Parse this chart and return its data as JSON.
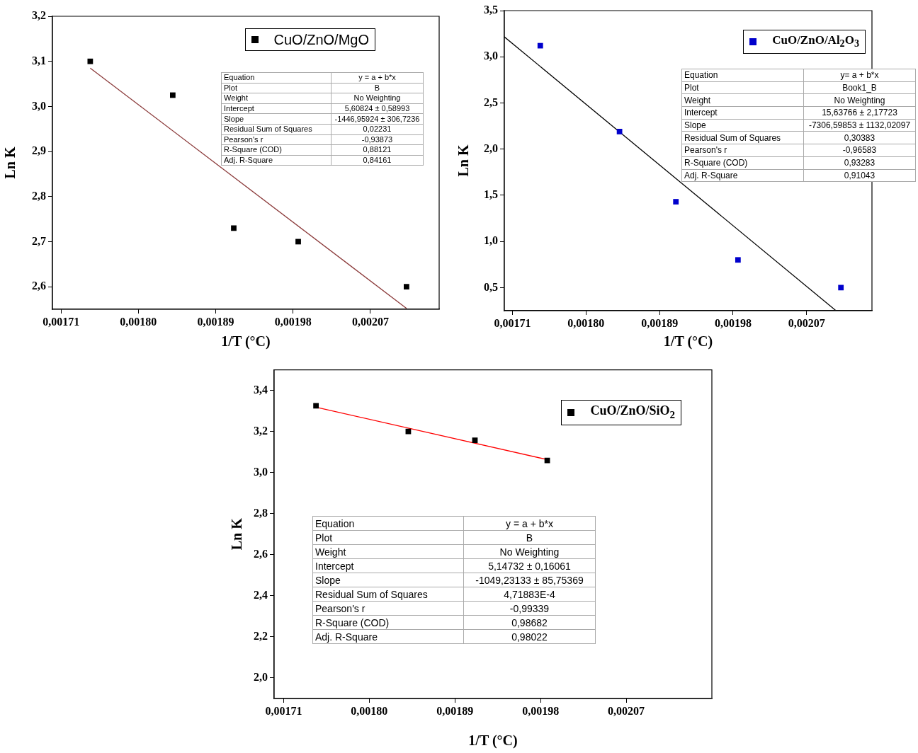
{
  "chart_data": [
    {
      "type": "scatter",
      "xlabel": "1/T (°C)",
      "ylabel": "Ln K",
      "marker": "square",
      "grid": false,
      "legend": "top right",
      "xlim": [
        0.0017,
        0.00215
      ],
      "xticks": [
        {
          "value": 0.00171,
          "label": "0,00171"
        },
        {
          "value": 0.0018,
          "label": "0,00180"
        },
        {
          "value": 0.00189,
          "label": "0,00189"
        },
        {
          "value": 0.00198,
          "label": "0,00198"
        },
        {
          "value": 0.00207,
          "label": "0,00207"
        }
      ],
      "ylim": [
        2.55,
        3.2
      ],
      "yticks": [
        {
          "value": 2.6,
          "label": "2,6"
        },
        {
          "value": 2.7,
          "label": "2,7"
        },
        {
          "value": 2.8,
          "label": "2,8"
        },
        {
          "value": 2.9,
          "label": "2,9"
        },
        {
          "value": 3.0,
          "label": "3,0"
        },
        {
          "value": 3.1,
          "label": "3,1"
        },
        {
          "value": 3.2,
          "label": "3,2"
        }
      ],
      "series": [
        {
          "name": "CuO/ZnO/MgO",
          "color": "#000000",
          "x": [
            0.001744,
            0.00184,
            0.001911,
            0.001986,
            0.002112
          ],
          "values": [
            3.1,
            3.025,
            2.73,
            2.7,
            2.6
          ]
        },
        {
          "type": "line",
          "marker": "none",
          "color": "#8b3a3a",
          "x": [
            0.001744,
            0.002112
          ],
          "values": [
            3.085,
            2.552
          ]
        }
      ],
      "annotations": [
        "Equation",
        "y = a + b*x",
        "Plot",
        "B",
        "Weight",
        "No Weighting",
        "Intercept",
        "5,60824 ± 0,58993",
        "Slope",
        "-1446,95924 ± 306,7236",
        "Residual Sum of Squares",
        "0,02231",
        "Pearson's r",
        "-0,93873",
        "R-Square (COD)",
        "0,88121",
        "Adj. R-Square",
        "0,84161"
      ]
    },
    {
      "type": "scatter",
      "xlabel": "1/T (°C)",
      "ylabel": "Ln K",
      "marker": "square",
      "grid": false,
      "legend": "top right",
      "xlim": [
        0.0017,
        0.00215
      ],
      "xticks": [
        {
          "value": 0.00171,
          "label": "0,00171"
        },
        {
          "value": 0.0018,
          "label": "0,00180"
        },
        {
          "value": 0.00189,
          "label": "0,00189"
        },
        {
          "value": 0.00198,
          "label": "0,00198"
        },
        {
          "value": 0.00207,
          "label": "0,00207"
        }
      ],
      "ylim": [
        0.25,
        3.5
      ],
      "yticks": [
        {
          "value": 0.5,
          "label": "0,5"
        },
        {
          "value": 1.0,
          "label": "1,0"
        },
        {
          "value": 1.5,
          "label": "1,5"
        },
        {
          "value": 2.0,
          "label": "2,0"
        },
        {
          "value": 2.5,
          "label": "2,5"
        },
        {
          "value": 3.0,
          "label": "3,0"
        },
        {
          "value": 3.5,
          "label": "3,5"
        }
      ],
      "series": [
        {
          "name": "CuO/ZnO/Al$_{2}$O$_{3}$",
          "color": "#0000cc",
          "x": [
            0.001744,
            0.001841,
            0.00191,
            0.001986,
            0.002112
          ],
          "values": [
            3.12,
            2.19,
            1.43,
            0.8,
            0.5
          ]
        },
        {
          "type": "line",
          "marker": "none",
          "color": "#000000",
          "x": [
            0.0017,
            0.002106
          ],
          "values": [
            3.216,
            0.25
          ]
        }
      ],
      "annotations": [
        "Equation",
        "y= a + b*x",
        "Plot",
        "Book1_B",
        "Weight",
        "No Weighting",
        "Intercept",
        "15,63766 ± 2,17723",
        "Slope",
        "-7306,59853 ± 1132,02097",
        "Residual Sum of Squares",
        "0,30383",
        "Pearson's r",
        "-0,96583",
        "R-Square (COD)",
        "0,93283",
        "Adj. R-Square",
        "0,91043"
      ]
    },
    {
      "type": "scatter",
      "xlabel": "1/T (°C)",
      "ylabel": "Ln K",
      "marker": "square",
      "grid": false,
      "legend": "top right",
      "xlim": [
        0.0017,
        0.00216
      ],
      "xticks": [
        {
          "value": 0.00171,
          "label": "0,00171"
        },
        {
          "value": 0.0018,
          "label": "0,00180"
        },
        {
          "value": 0.00189,
          "label": "0,00189"
        },
        {
          "value": 0.00198,
          "label": "0,00198"
        },
        {
          "value": 0.00207,
          "label": "0,00207"
        }
      ],
      "ylim": [
        1.9,
        3.5
      ],
      "yticks": [
        {
          "value": 2.0,
          "label": "2,0"
        },
        {
          "value": 2.2,
          "label": "2,2"
        },
        {
          "value": 2.4,
          "label": "2,4"
        },
        {
          "value": 2.6,
          "label": "2,6"
        },
        {
          "value": 2.8,
          "label": "2,8"
        },
        {
          "value": 3.0,
          "label": "3,0"
        },
        {
          "value": 3.2,
          "label": "3,2"
        },
        {
          "value": 3.4,
          "label": "3,4"
        }
      ],
      "series": [
        {
          "name": "CuO/ZnO/SiO$_{2}$",
          "color": "#000000",
          "x": [
            0.001744,
            0.001841,
            0.001911,
            0.001987
          ],
          "values": [
            3.325,
            3.2,
            3.157,
            3.059
          ]
        },
        {
          "type": "line",
          "marker": "none",
          "color": "#ff0000",
          "x": [
            0.001744,
            0.001987
          ],
          "values": [
            3.318,
            3.063
          ]
        }
      ],
      "annotations": [
        "Equation",
        "y = a + b*x",
        "Plot",
        "B",
        "Weight",
        "No Weighting",
        "Intercept",
        "5,14732 ± 0,16061",
        "Slope",
        "-1049,23133 ± 85,75369",
        "Residual Sum of Squares",
        "4,71883E-4",
        "Pearson's r",
        "-0,99339",
        "R-Square (COD)",
        "0,98682",
        "Adj. R-Square",
        "0,98022"
      ]
    }
  ]
}
